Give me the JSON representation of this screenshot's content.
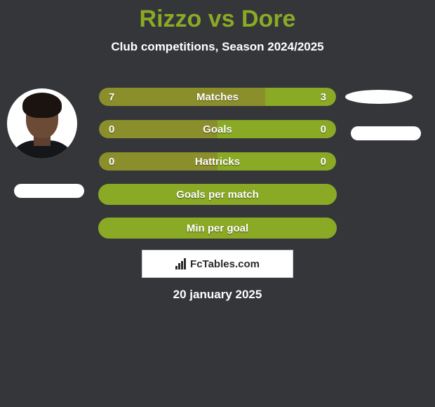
{
  "colors": {
    "background": "#34363a",
    "accent": "#8aa924",
    "text": "#ffffff",
    "olive_alt": "#8b8f2b",
    "watermark_border": "#c7c9cc",
    "watermark_bg": "#ffffff",
    "watermark_text": "#2b2b2b"
  },
  "title": "Rizzo vs Dore",
  "subtitle": "Club competitions, Season 2024/2025",
  "date": "20 january 2025",
  "watermark_text": "FcTables.com",
  "rows": [
    {
      "label": "Matches",
      "left": "7",
      "right": "3",
      "left_pct": 70,
      "right_pct": 30,
      "left_color": "#8b8f2b",
      "right_color": "#8aa924",
      "style": "split"
    },
    {
      "label": "Goals",
      "left": "0",
      "right": "0",
      "left_pct": 50,
      "right_pct": 50,
      "left_color": "#8b8f2b",
      "right_color": "#8aa924",
      "style": "split"
    },
    {
      "label": "Hattricks",
      "left": "0",
      "right": "0",
      "left_pct": 50,
      "right_pct": 50,
      "left_color": "#8b8f2b",
      "right_color": "#8aa924",
      "style": "split"
    },
    {
      "label": "Goals per match",
      "left": "",
      "right": "",
      "left_pct": 0,
      "right_pct": 0,
      "border_color": "#8aa924",
      "style": "plain"
    },
    {
      "label": "Min per goal",
      "left": "",
      "right": "",
      "left_pct": 0,
      "right_pct": 0,
      "border_color": "#8aa924",
      "style": "plain"
    }
  ]
}
